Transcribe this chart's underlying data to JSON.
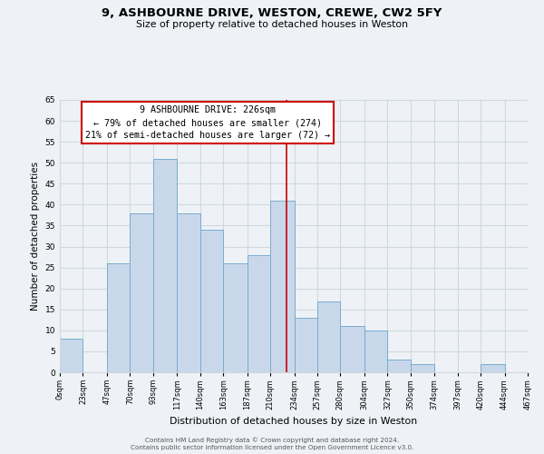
{
  "title": "9, ASHBOURNE DRIVE, WESTON, CREWE, CW2 5FY",
  "subtitle": "Size of property relative to detached houses in Weston",
  "xlabel": "Distribution of detached houses by size in Weston",
  "ylabel": "Number of detached properties",
  "bar_edges": [
    0,
    23,
    47,
    70,
    93,
    117,
    140,
    163,
    187,
    210,
    234,
    257,
    280,
    304,
    327,
    350,
    374,
    397,
    420,
    444,
    467
  ],
  "bar_heights": [
    8,
    0,
    26,
    38,
    51,
    38,
    34,
    26,
    28,
    41,
    13,
    17,
    11,
    10,
    3,
    2,
    0,
    0,
    2,
    0
  ],
  "bar_color": "#c8d8ea",
  "bar_edge_color": "#7aaccf",
  "tick_labels": [
    "0sqm",
    "23sqm",
    "47sqm",
    "70sqm",
    "93sqm",
    "117sqm",
    "140sqm",
    "163sqm",
    "187sqm",
    "210sqm",
    "234sqm",
    "257sqm",
    "280sqm",
    "304sqm",
    "327sqm",
    "350sqm",
    "374sqm",
    "397sqm",
    "420sqm",
    "444sqm",
    "467sqm"
  ],
  "vline_x": 226,
  "vline_color": "#cc0000",
  "annotation_line1": "9 ASHBOURNE DRIVE: 226sqm",
  "annotation_line2": "← 79% of detached houses are smaller (274)",
  "annotation_line3": "21% of semi-detached houses are larger (72) →",
  "ylim": [
    0,
    65
  ],
  "yticks": [
    0,
    5,
    10,
    15,
    20,
    25,
    30,
    35,
    40,
    45,
    50,
    55,
    60,
    65
  ],
  "grid_color": "#d0d8e0",
  "background_color": "#eef2f6",
  "footer_line1": "Contains HM Land Registry data © Crown copyright and database right 2024.",
  "footer_line2": "Contains public sector information licensed under the Open Government Licence v3.0."
}
